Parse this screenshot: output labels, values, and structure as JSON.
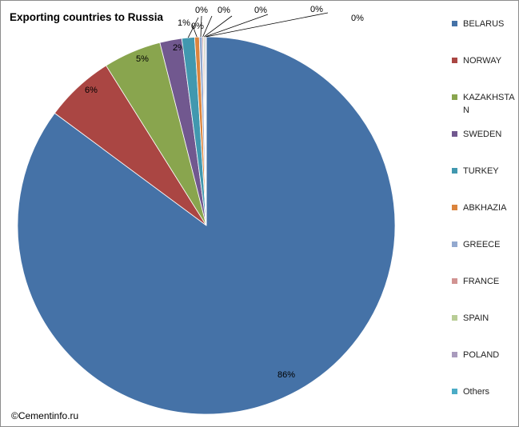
{
  "chart_data": {
    "type": "pie",
    "title": "Exporting countries to Russia",
    "footer": "©Cementinfo.ru",
    "legend_position": "right",
    "slices": [
      {
        "name": "BELARUS",
        "value": 86,
        "label": "86%",
        "color": "#4572a7"
      },
      {
        "name": "NORWAY",
        "value": 6,
        "label": "6%",
        "color": "#aa4643"
      },
      {
        "name": "KAZAKHSTAN",
        "value": 5,
        "label": "5%",
        "color": "#89a54e"
      },
      {
        "name": "SWEDEN",
        "value": 1.9,
        "label": "2%",
        "color": "#71588f"
      },
      {
        "name": "TURKEY",
        "value": 1.1,
        "label": "1%",
        "color": "#4198af"
      },
      {
        "name": "ABKHAZIA",
        "value": 0.4,
        "label": "0%",
        "color": "#db843d"
      },
      {
        "name": "GREECE",
        "value": 0.25,
        "label": "0%",
        "color": "#93a9cf"
      },
      {
        "name": "FRANCE",
        "value": 0.1,
        "label": "0%",
        "color": "#d19392"
      },
      {
        "name": "SPAIN",
        "value": 0.1,
        "label": "0%",
        "color": "#b9cd96"
      },
      {
        "name": "POLAND",
        "value": 0.1,
        "label": "0%",
        "color": "#a99bbd"
      },
      {
        "name": "Others",
        "value": 0.05,
        "label": "0%",
        "color": "#4bacc6"
      }
    ]
  }
}
